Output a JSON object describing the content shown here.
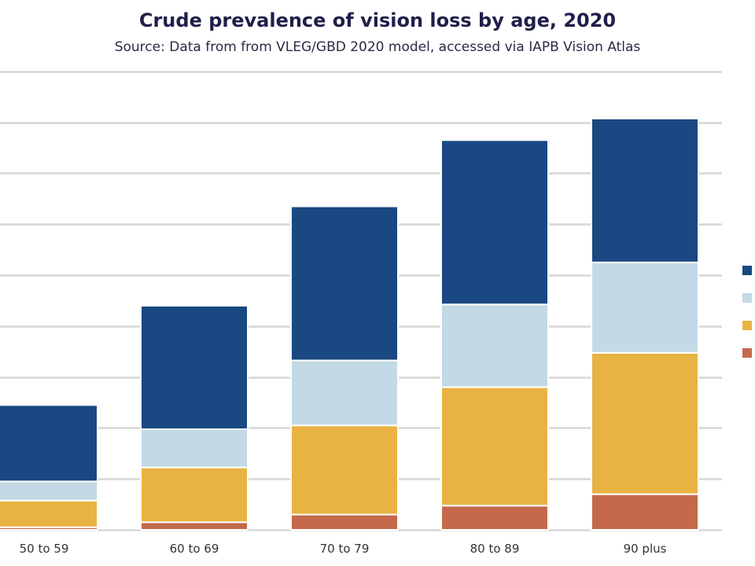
{
  "chart_data": {
    "type": "bar",
    "stacked": true,
    "title": "Crude prevalence of vision loss by age, 2020",
    "subtitle": "Source: Data from from VLEG/GBD 2020 model, accessed via IAPB Vision Atlas",
    "categories": [
      "50 to 59",
      "60 to 69",
      "70 to 79",
      "80 to 89",
      "90 plus"
    ],
    "series": [
      {
        "color": "#c4694b",
        "values": [
          0.2,
          0.6,
          1.2,
          1.9,
          2.8
        ]
      },
      {
        "color": "#e8b342",
        "values": [
          2.1,
          4.3,
          7.0,
          9.3,
          11.1
        ]
      },
      {
        "color": "#c3d9e5",
        "values": [
          1.5,
          3.0,
          5.1,
          6.5,
          7.1
        ]
      },
      {
        "color": "#194882",
        "values": [
          6.0,
          9.7,
          12.1,
          12.9,
          11.3
        ]
      }
    ],
    "ylim": [
      0,
      36
    ],
    "grid": true,
    "legend": "right"
  }
}
